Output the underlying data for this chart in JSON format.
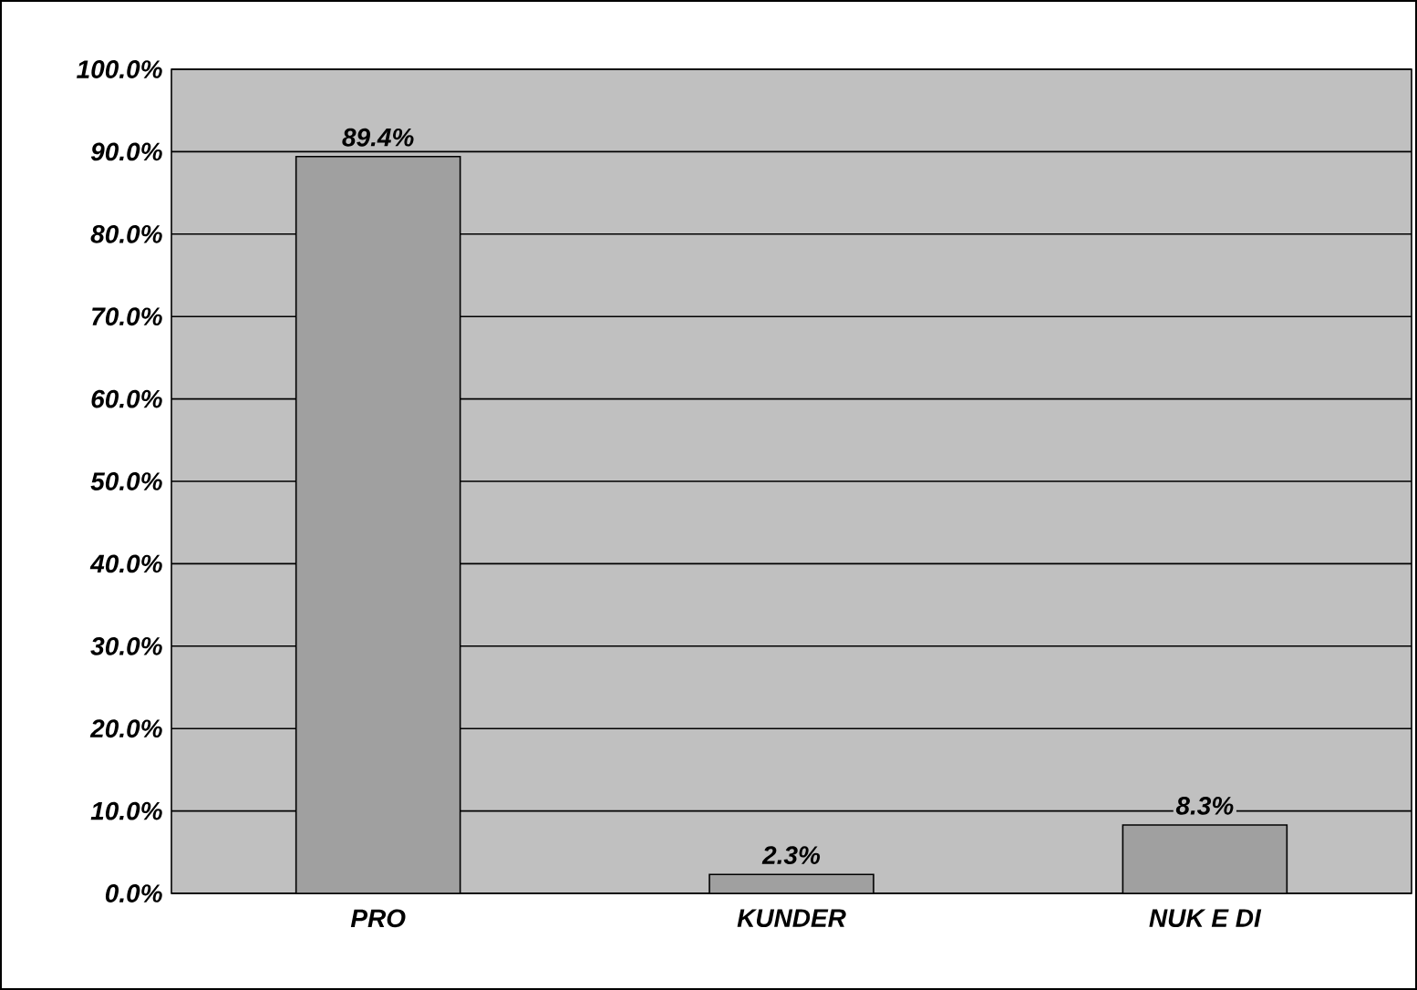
{
  "chart_data": {
    "type": "bar",
    "categories": [
      "PRO",
      "KUNDER",
      "NUK E DI"
    ],
    "values": [
      89.4,
      2.3,
      8.3
    ],
    "value_labels": [
      "89.4%",
      "2.3%",
      "8.3%"
    ],
    "color": "#a0a0a0",
    "ylim": [
      0,
      100
    ],
    "yticks": [
      {
        "value": 0,
        "label": "0.0%"
      },
      {
        "value": 10,
        "label": "10.0%"
      },
      {
        "value": 20,
        "label": "20.0%"
      },
      {
        "value": 30,
        "label": "30.0%"
      },
      {
        "value": 40,
        "label": "40.0%"
      },
      {
        "value": 50,
        "label": "50.0%"
      },
      {
        "value": 60,
        "label": "60.0%"
      },
      {
        "value": 70,
        "label": "70.0%"
      },
      {
        "value": 80,
        "label": "80.0%"
      },
      {
        "value": 90,
        "label": "90.0%"
      },
      {
        "value": 100,
        "label": "100.0%"
      }
    ],
    "grid": "y"
  }
}
